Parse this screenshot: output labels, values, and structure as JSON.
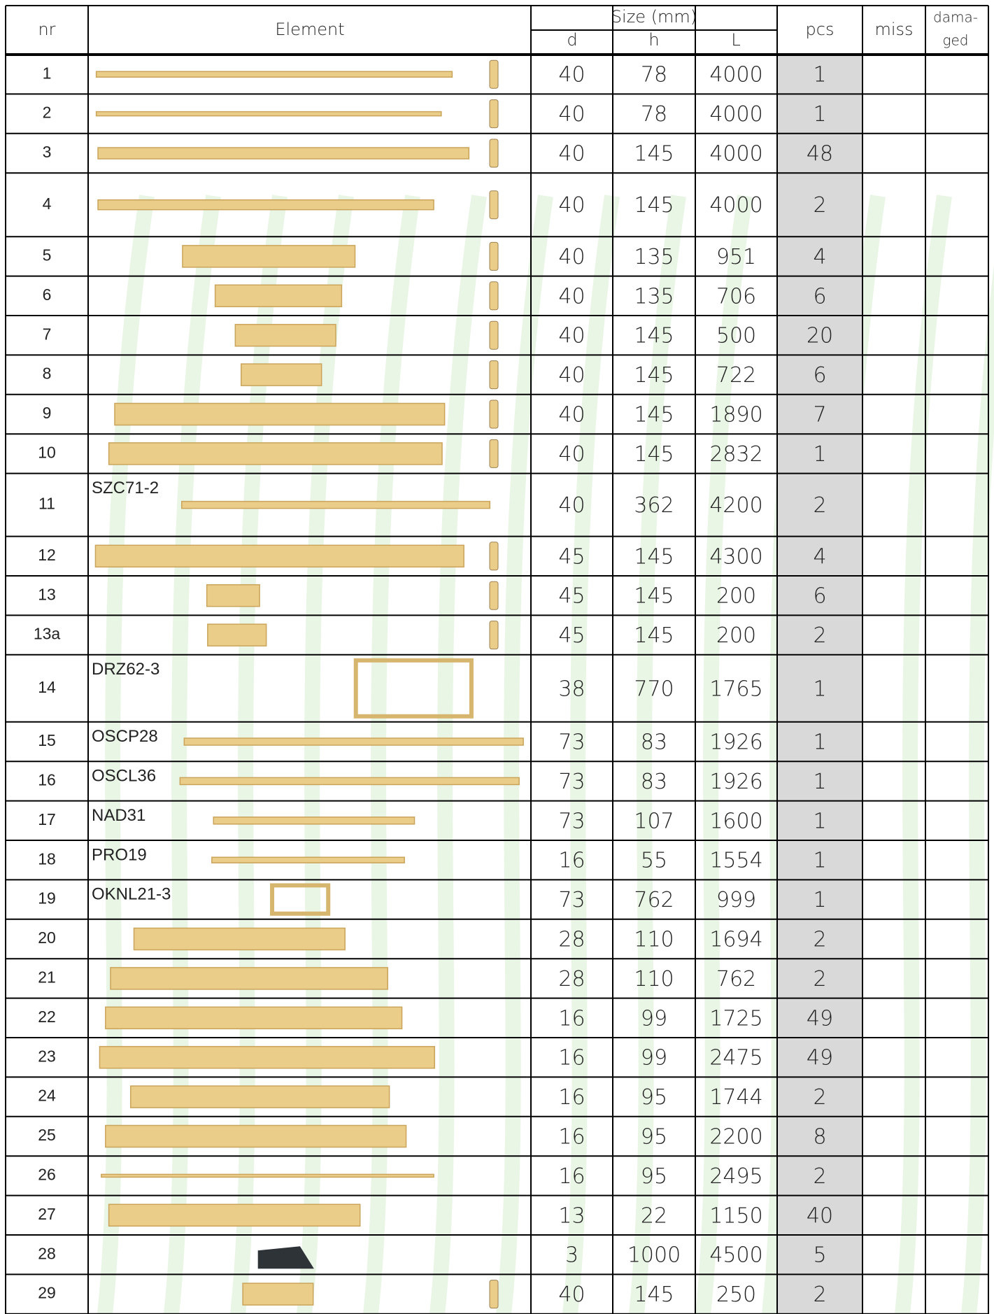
{
  "header": {
    "nr": "nr",
    "element": "Element",
    "size": "Size (mm)",
    "d": "d",
    "h": "h",
    "L": "L",
    "pcs": "pcs",
    "miss": "miss",
    "damaged": [
      "dama-",
      "ged"
    ]
  },
  "table": {
    "rows": [
      {
        "nr": "1",
        "d": "40",
        "h": "78",
        "L": "4000",
        "pcs": "1"
      },
      {
        "nr": "2",
        "d": "40",
        "h": "78",
        "L": "4000",
        "pcs": "1"
      },
      {
        "nr": "3",
        "d": "40",
        "h": "145",
        "L": "4000",
        "pcs": "48"
      },
      {
        "nr": "4",
        "d": "40",
        "h": "145",
        "L": "4000",
        "pcs": "2"
      },
      {
        "nr": "5",
        "d": "40",
        "h": "135",
        "L": "951",
        "pcs": "4"
      },
      {
        "nr": "6",
        "d": "40",
        "h": "135",
        "L": "706",
        "pcs": "6"
      },
      {
        "nr": "7",
        "d": "40",
        "h": "145",
        "L": "500",
        "pcs": "20"
      },
      {
        "nr": "8",
        "d": "40",
        "h": "145",
        "L": "722",
        "pcs": "6"
      },
      {
        "nr": "9",
        "d": "40",
        "h": "145",
        "L": "1890",
        "pcs": "7"
      },
      {
        "nr": "10",
        "d": "40",
        "h": "145",
        "L": "2832",
        "pcs": "1"
      },
      {
        "nr": "11",
        "label": "SZC71-2",
        "d": "40",
        "h": "362",
        "L": "4200",
        "pcs": "2"
      },
      {
        "nr": "12",
        "d": "45",
        "h": "145",
        "L": "4300",
        "pcs": "4"
      },
      {
        "nr": "13",
        "d": "45",
        "h": "145",
        "L": "200",
        "pcs": "6"
      },
      {
        "nr": "13a",
        "d": "45",
        "h": "145",
        "L": "200",
        "pcs": "2"
      },
      {
        "nr": "14",
        "label": "DRZ62-3",
        "d": "38",
        "h": "770",
        "L": "1765",
        "pcs": "1"
      },
      {
        "nr": "15",
        "label": "OSCP28",
        "d": "73",
        "h": "83",
        "L": "1926",
        "pcs": "1"
      },
      {
        "nr": "16",
        "label": "OSCL36",
        "d": "73",
        "h": "83",
        "L": "1926",
        "pcs": "1"
      },
      {
        "nr": "17",
        "label": "NAD31",
        "d": "73",
        "h": "107",
        "L": "1600",
        "pcs": "1"
      },
      {
        "nr": "18",
        "label": "PRO19",
        "d": "16",
        "h": "55",
        "L": "1554",
        "pcs": "1"
      },
      {
        "nr": "19",
        "label": "OKNL21-3",
        "d": "73",
        "h": "762",
        "L": "999",
        "pcs": "1"
      },
      {
        "nr": "20",
        "d": "28",
        "h": "110",
        "L": "1694",
        "pcs": "2"
      },
      {
        "nr": "21",
        "d": "28",
        "h": "110",
        "L": "762",
        "pcs": "2"
      },
      {
        "nr": "22",
        "d": "16",
        "h": "99",
        "L": "1725",
        "pcs": "49"
      },
      {
        "nr": "23",
        "d": "16",
        "h": "99",
        "L": "2475",
        "pcs": "49"
      },
      {
        "nr": "24",
        "d": "16",
        "h": "95",
        "L": "1744",
        "pcs": "2"
      },
      {
        "nr": "25",
        "d": "16",
        "h": "95",
        "L": "2200",
        "pcs": "8"
      },
      {
        "nr": "26",
        "d": "16",
        "h": "95",
        "L": "2495",
        "pcs": "2"
      },
      {
        "nr": "27",
        "d": "13",
        "h": "22",
        "L": "1150",
        "pcs": "40"
      },
      {
        "nr": "28",
        "d": "3",
        "h": "1000",
        "L": "4500",
        "pcs": "5"
      },
      {
        "nr": "29",
        "d": "40",
        "h": "145",
        "L": "250",
        "pcs": "2"
      }
    ]
  }
}
